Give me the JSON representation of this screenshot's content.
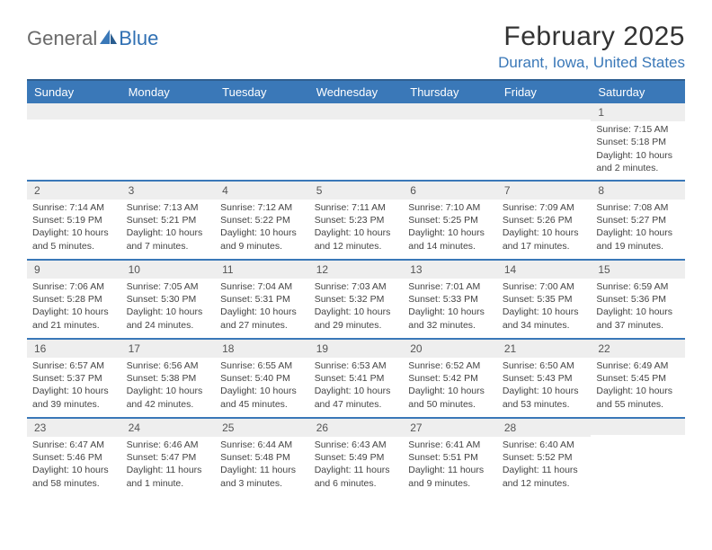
{
  "branding": {
    "word1": "General",
    "word2": "Blue",
    "logo_color": "#3a78b8",
    "text_gray": "#6a6a6a"
  },
  "header": {
    "title": "February 2025",
    "location": "Durant, Iowa, United States"
  },
  "colors": {
    "header_bg": "#3a78b8",
    "header_border": "#2f5f90",
    "row_border": "#3a78b8",
    "daynum_bg": "#eeeeee",
    "text": "#333333",
    "subtext": "#444444"
  },
  "dayNames": [
    "Sunday",
    "Monday",
    "Tuesday",
    "Wednesday",
    "Thursday",
    "Friday",
    "Saturday"
  ],
  "weeks": [
    [
      {
        "n": "",
        "lines": []
      },
      {
        "n": "",
        "lines": []
      },
      {
        "n": "",
        "lines": []
      },
      {
        "n": "",
        "lines": []
      },
      {
        "n": "",
        "lines": []
      },
      {
        "n": "",
        "lines": []
      },
      {
        "n": "1",
        "lines": [
          "Sunrise: 7:15 AM",
          "Sunset: 5:18 PM",
          "Daylight: 10 hours and 2 minutes."
        ]
      }
    ],
    [
      {
        "n": "2",
        "lines": [
          "Sunrise: 7:14 AM",
          "Sunset: 5:19 PM",
          "Daylight: 10 hours and 5 minutes."
        ]
      },
      {
        "n": "3",
        "lines": [
          "Sunrise: 7:13 AM",
          "Sunset: 5:21 PM",
          "Daylight: 10 hours and 7 minutes."
        ]
      },
      {
        "n": "4",
        "lines": [
          "Sunrise: 7:12 AM",
          "Sunset: 5:22 PM",
          "Daylight: 10 hours and 9 minutes."
        ]
      },
      {
        "n": "5",
        "lines": [
          "Sunrise: 7:11 AM",
          "Sunset: 5:23 PM",
          "Daylight: 10 hours and 12 minutes."
        ]
      },
      {
        "n": "6",
        "lines": [
          "Sunrise: 7:10 AM",
          "Sunset: 5:25 PM",
          "Daylight: 10 hours and 14 minutes."
        ]
      },
      {
        "n": "7",
        "lines": [
          "Sunrise: 7:09 AM",
          "Sunset: 5:26 PM",
          "Daylight: 10 hours and 17 minutes."
        ]
      },
      {
        "n": "8",
        "lines": [
          "Sunrise: 7:08 AM",
          "Sunset: 5:27 PM",
          "Daylight: 10 hours and 19 minutes."
        ]
      }
    ],
    [
      {
        "n": "9",
        "lines": [
          "Sunrise: 7:06 AM",
          "Sunset: 5:28 PM",
          "Daylight: 10 hours and 21 minutes."
        ]
      },
      {
        "n": "10",
        "lines": [
          "Sunrise: 7:05 AM",
          "Sunset: 5:30 PM",
          "Daylight: 10 hours and 24 minutes."
        ]
      },
      {
        "n": "11",
        "lines": [
          "Sunrise: 7:04 AM",
          "Sunset: 5:31 PM",
          "Daylight: 10 hours and 27 minutes."
        ]
      },
      {
        "n": "12",
        "lines": [
          "Sunrise: 7:03 AM",
          "Sunset: 5:32 PM",
          "Daylight: 10 hours and 29 minutes."
        ]
      },
      {
        "n": "13",
        "lines": [
          "Sunrise: 7:01 AM",
          "Sunset: 5:33 PM",
          "Daylight: 10 hours and 32 minutes."
        ]
      },
      {
        "n": "14",
        "lines": [
          "Sunrise: 7:00 AM",
          "Sunset: 5:35 PM",
          "Daylight: 10 hours and 34 minutes."
        ]
      },
      {
        "n": "15",
        "lines": [
          "Sunrise: 6:59 AM",
          "Sunset: 5:36 PM",
          "Daylight: 10 hours and 37 minutes."
        ]
      }
    ],
    [
      {
        "n": "16",
        "lines": [
          "Sunrise: 6:57 AM",
          "Sunset: 5:37 PM",
          "Daylight: 10 hours and 39 minutes."
        ]
      },
      {
        "n": "17",
        "lines": [
          "Sunrise: 6:56 AM",
          "Sunset: 5:38 PM",
          "Daylight: 10 hours and 42 minutes."
        ]
      },
      {
        "n": "18",
        "lines": [
          "Sunrise: 6:55 AM",
          "Sunset: 5:40 PM",
          "Daylight: 10 hours and 45 minutes."
        ]
      },
      {
        "n": "19",
        "lines": [
          "Sunrise: 6:53 AM",
          "Sunset: 5:41 PM",
          "Daylight: 10 hours and 47 minutes."
        ]
      },
      {
        "n": "20",
        "lines": [
          "Sunrise: 6:52 AM",
          "Sunset: 5:42 PM",
          "Daylight: 10 hours and 50 minutes."
        ]
      },
      {
        "n": "21",
        "lines": [
          "Sunrise: 6:50 AM",
          "Sunset: 5:43 PM",
          "Daylight: 10 hours and 53 minutes."
        ]
      },
      {
        "n": "22",
        "lines": [
          "Sunrise: 6:49 AM",
          "Sunset: 5:45 PM",
          "Daylight: 10 hours and 55 minutes."
        ]
      }
    ],
    [
      {
        "n": "23",
        "lines": [
          "Sunrise: 6:47 AM",
          "Sunset: 5:46 PM",
          "Daylight: 10 hours and 58 minutes."
        ]
      },
      {
        "n": "24",
        "lines": [
          "Sunrise: 6:46 AM",
          "Sunset: 5:47 PM",
          "Daylight: 11 hours and 1 minute."
        ]
      },
      {
        "n": "25",
        "lines": [
          "Sunrise: 6:44 AM",
          "Sunset: 5:48 PM",
          "Daylight: 11 hours and 3 minutes."
        ]
      },
      {
        "n": "26",
        "lines": [
          "Sunrise: 6:43 AM",
          "Sunset: 5:49 PM",
          "Daylight: 11 hours and 6 minutes."
        ]
      },
      {
        "n": "27",
        "lines": [
          "Sunrise: 6:41 AM",
          "Sunset: 5:51 PM",
          "Daylight: 11 hours and 9 minutes."
        ]
      },
      {
        "n": "28",
        "lines": [
          "Sunrise: 6:40 AM",
          "Sunset: 5:52 PM",
          "Daylight: 11 hours and 12 minutes."
        ]
      },
      {
        "n": "",
        "lines": []
      }
    ]
  ]
}
